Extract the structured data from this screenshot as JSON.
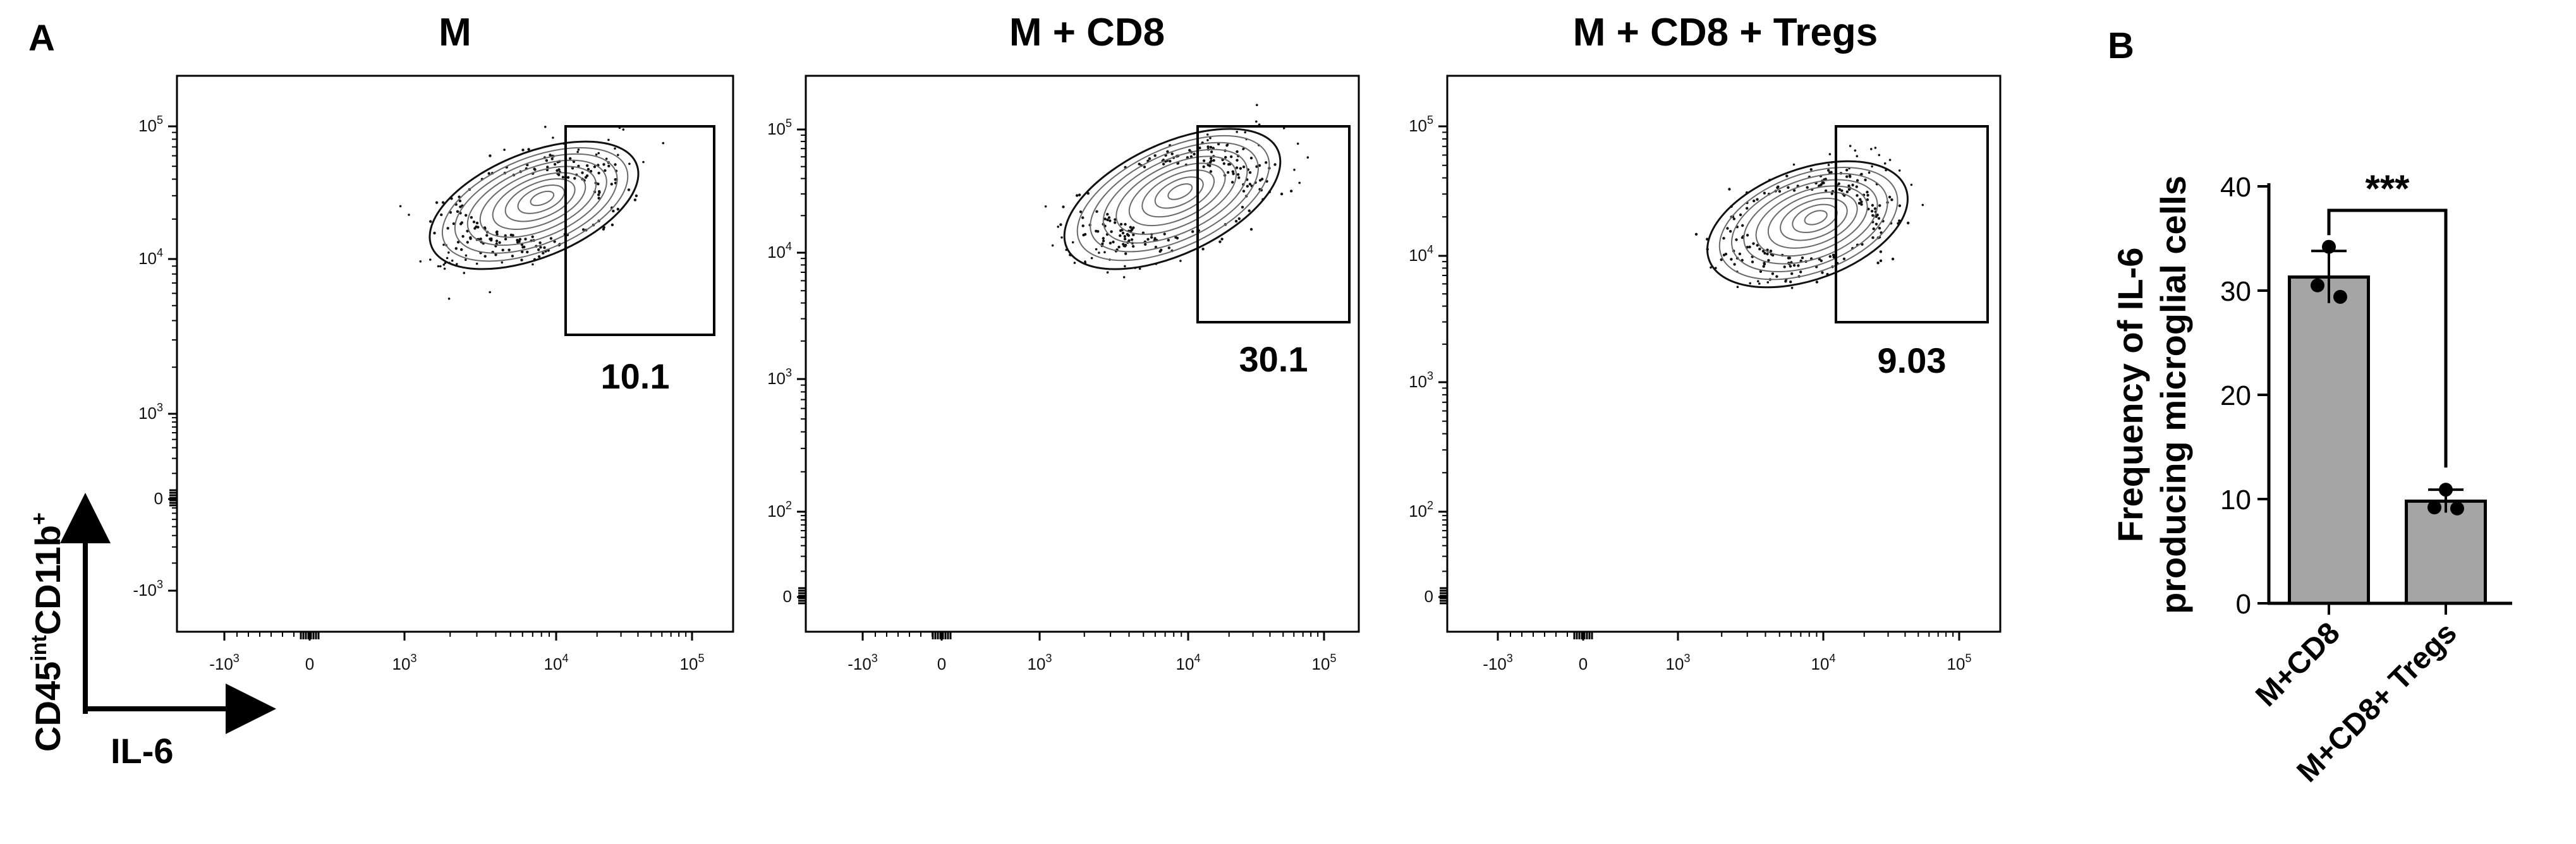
{
  "panel_labels": {
    "a": "A",
    "b": "B"
  },
  "chart_data": [
    {
      "type": "scatter",
      "subtype": "flow-cytometry-contour",
      "title": "M",
      "gate_value": "10.1",
      "x_ticks": [
        "-10^3",
        "0",
        "10^3",
        "10^4",
        "10^5"
      ],
      "y_ticks": [
        "10^5",
        "10^4",
        "10^3",
        "0",
        "-10^3"
      ],
      "population_center": {
        "x": 8000,
        "y": 22000
      }
    },
    {
      "type": "scatter",
      "subtype": "flow-cytometry-contour",
      "title": "M + CD8",
      "gate_value": "30.1",
      "x_ticks": [
        "-10^3",
        "0",
        "10^3",
        "10^4",
        "10^5"
      ],
      "y_ticks": [
        "10^5",
        "10^4",
        "10^3",
        "10^2",
        "0"
      ],
      "population_center": {
        "x": 9000,
        "y": 25000
      }
    },
    {
      "type": "scatter",
      "subtype": "flow-cytometry-contour",
      "title": "M + CD8 + Tregs",
      "gate_value": "9.03",
      "x_ticks": [
        "-10^3",
        "0",
        "10^3",
        "10^4",
        "10^5"
      ],
      "y_ticks": [
        "10^5",
        "10^4",
        "10^3",
        "10^2",
        "0"
      ],
      "population_center": {
        "x": 7000,
        "y": 15000
      }
    },
    {
      "type": "bar",
      "categories": [
        "M+CD8",
        "M+CD8+ Tregs"
      ],
      "values": [
        31.3,
        9.8
      ],
      "errors": [
        2.5,
        1.1
      ],
      "points": [
        [
          34.2,
          30.5,
          29.4
        ],
        [
          10.9,
          9.2,
          9.1
        ]
      ],
      "ylabel_line1": "Frequency of IL-6",
      "ylabel_line2": "producing microglial cells",
      "ylim": [
        0,
        40
      ],
      "yticks": [
        0,
        10,
        20,
        30,
        40
      ],
      "significance": "***"
    }
  ],
  "axis_labels": {
    "y_base": "CD45",
    "y_sup1": "int",
    "y_mid": "CD11b",
    "y_sup2": "+",
    "x": "IL-6"
  }
}
